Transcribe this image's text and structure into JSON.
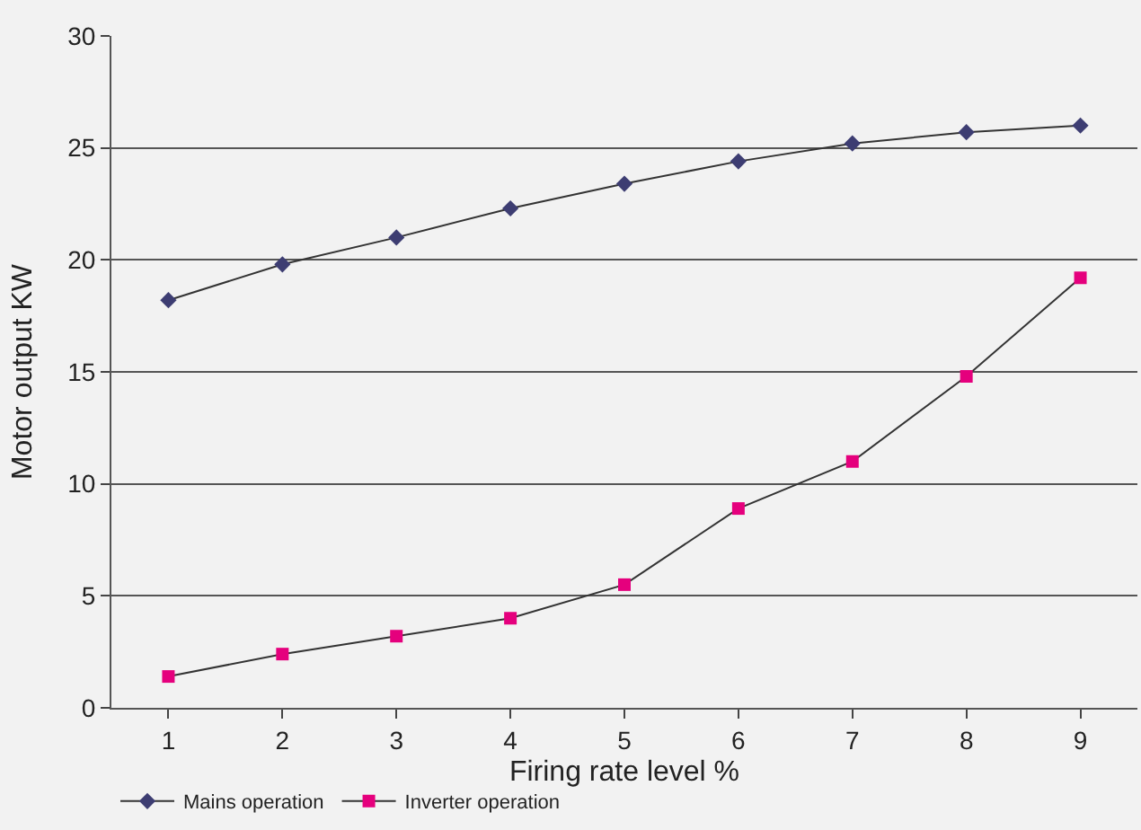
{
  "chart_data": {
    "type": "line",
    "xlabel": "Firing rate level %",
    "ylabel": "Motor output KW",
    "categories": [
      "1",
      "2",
      "3",
      "4",
      "5",
      "6",
      "7",
      "8",
      "9"
    ],
    "series": [
      {
        "name": "Mains operation",
        "color": "#3d3d72",
        "marker": "diamond",
        "values": [
          18.2,
          19.8,
          21.0,
          22.3,
          23.4,
          24.4,
          25.2,
          25.7,
          26.0
        ]
      },
      {
        "name": "Inverter operation",
        "color": "#e5007d",
        "marker": "square",
        "values": [
          1.4,
          2.4,
          3.2,
          4.0,
          5.5,
          8.9,
          11.0,
          14.8,
          19.2
        ]
      }
    ],
    "ylim": [
      0,
      30
    ],
    "yticks": [
      0,
      5,
      10,
      15,
      20,
      25,
      30
    ],
    "grid": "y",
    "legend": "bottom left",
    "line_style": "solid"
  }
}
